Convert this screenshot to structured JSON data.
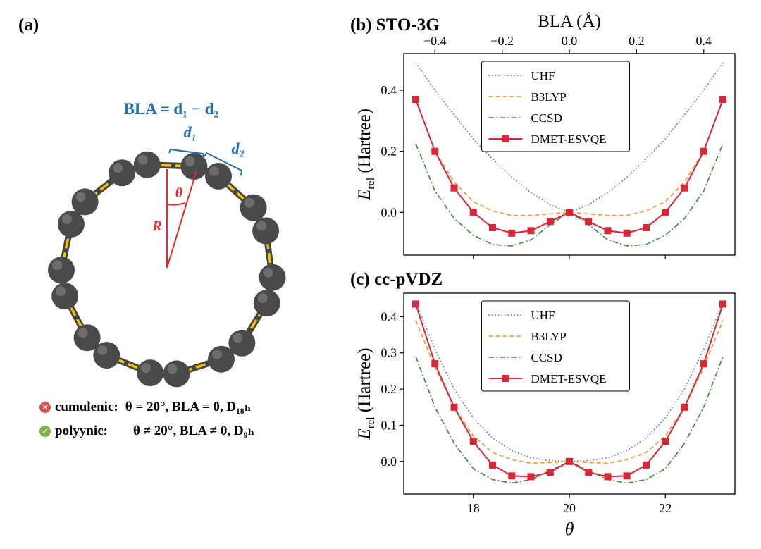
{
  "panel_a": {
    "label": "(a)",
    "formula": "BLA = d₁ − d₂",
    "d1_label": "d₁",
    "d2_label": "d₂",
    "theta_label": "θ",
    "r_label": "R",
    "note_cumulenic_name": "cumulenic:",
    "note_cumulenic_cond": "θ = 20°, BLA = 0, D₁₈ₕ",
    "note_polyynic_name": "polyynic:",
    "note_polyynic_cond": "θ ≠ 20°, BLA ≠ 0, D₉ₕ",
    "cumulenic_icon": "x-icon",
    "polyynic_icon": "check-icon",
    "colors": {
      "atom": "#4a4a4a",
      "bond": "#f5c200",
      "formula": "#1f6fb2",
      "angle": "#e8262b"
    }
  },
  "chart_data": [
    {
      "type": "line",
      "label": "(b) STO-3G",
      "top_axis_label": "BLA (Å)",
      "top_ticks": [
        -0.4,
        -0.2,
        0.0,
        0.2,
        0.4
      ],
      "top_tick_labels": [
        "−0.4",
        "−0.2",
        "0.0",
        "0.2",
        "0.4"
      ],
      "ylabel": "E_rel (Hartree)",
      "xlim": [
        16.55,
        23.45
      ],
      "ylim": [
        -0.14,
        0.52
      ],
      "yticks": [
        0.0,
        0.2,
        0.4
      ],
      "ytick_labels": [
        "0.0",
        "0.2",
        "0.4"
      ],
      "xticks": [
        18,
        20,
        22
      ],
      "xtick_labels": [],
      "legend": "top-center",
      "series": [
        {
          "name": "UHF",
          "style": "dotted",
          "color": "#4a6fa5",
          "x": [
            16.8,
            17.2,
            17.6,
            18.0,
            18.4,
            18.8,
            19.2,
            19.6,
            20.0,
            20.4,
            20.8,
            21.2,
            21.6,
            22.0,
            22.4,
            22.8,
            23.2
          ],
          "y": [
            0.49,
            0.4,
            0.32,
            0.24,
            0.175,
            0.115,
            0.065,
            0.025,
            0.0,
            0.025,
            0.065,
            0.115,
            0.175,
            0.24,
            0.32,
            0.4,
            0.49
          ]
        },
        {
          "name": "B3LYP",
          "style": "dashed",
          "color": "#f0932b",
          "x": [
            16.8,
            17.2,
            17.6,
            18.0,
            18.4,
            18.8,
            19.2,
            19.6,
            20.0,
            20.4,
            20.8,
            21.2,
            21.6,
            22.0,
            22.4,
            22.8,
            23.2
          ],
          "y": [
            0.37,
            0.2,
            0.1,
            0.035,
            0.005,
            -0.01,
            -0.01,
            -0.005,
            0.0,
            -0.005,
            -0.01,
            -0.01,
            0.005,
            0.035,
            0.1,
            0.2,
            0.37
          ]
        },
        {
          "name": "CCSD",
          "style": "dashdot",
          "color": "#3a8a3a",
          "x": [
            16.8,
            17.2,
            17.6,
            18.0,
            18.4,
            18.8,
            19.2,
            19.6,
            20.0,
            20.4,
            20.8,
            21.2,
            21.6,
            22.0,
            22.4,
            22.8,
            23.2
          ],
          "y": [
            0.225,
            0.07,
            -0.02,
            -0.075,
            -0.105,
            -0.11,
            -0.09,
            -0.04,
            0.0,
            -0.04,
            -0.09,
            -0.11,
            -0.105,
            -0.075,
            -0.02,
            0.07,
            0.225
          ]
        },
        {
          "name": "DMET-ESVQE",
          "style": "solid-square",
          "color": "#d62839",
          "x": [
            16.8,
            17.2,
            17.6,
            18.0,
            18.4,
            18.8,
            19.2,
            19.6,
            20.0,
            20.4,
            20.8,
            21.2,
            21.6,
            22.0,
            22.4,
            22.8,
            23.2
          ],
          "y": [
            0.37,
            0.2,
            0.08,
            0.0,
            -0.05,
            -0.068,
            -0.06,
            -0.03,
            0.0,
            -0.03,
            -0.06,
            -0.068,
            -0.05,
            0.0,
            0.08,
            0.2,
            0.37
          ]
        }
      ]
    },
    {
      "type": "line",
      "label": "(c) cc-pVDZ",
      "ylabel": "E_rel (Hartree)",
      "xlabel": "θ",
      "xlim": [
        16.55,
        23.45
      ],
      "ylim": [
        -0.09,
        0.465
      ],
      "yticks": [
        0.0,
        0.1,
        0.2,
        0.3,
        0.4
      ],
      "ytick_labels": [
        "0.0",
        "0.1",
        "0.2",
        "0.3",
        "0.4"
      ],
      "xticks": [
        18,
        20,
        22
      ],
      "xtick_labels": [
        "18",
        "20",
        "22"
      ],
      "legend": "top-center",
      "series": [
        {
          "name": "UHF",
          "style": "dotted",
          "color": "#4a6fa5",
          "x": [
            16.8,
            17.2,
            17.6,
            18.0,
            18.4,
            18.8,
            19.2,
            19.6,
            20.0,
            20.4,
            20.8,
            21.2,
            21.6,
            22.0,
            22.4,
            22.8,
            23.2
          ],
          "y": [
            0.44,
            0.31,
            0.2,
            0.12,
            0.065,
            0.03,
            0.01,
            0.002,
            0.0,
            0.002,
            0.01,
            0.03,
            0.065,
            0.12,
            0.2,
            0.31,
            0.44
          ]
        },
        {
          "name": "B3LYP",
          "style": "dashed",
          "color": "#f0932b",
          "x": [
            16.8,
            17.2,
            17.6,
            18.0,
            18.4,
            18.8,
            19.2,
            19.6,
            20.0,
            20.4,
            20.8,
            21.2,
            21.6,
            22.0,
            22.4,
            22.8,
            23.2
          ],
          "y": [
            0.39,
            0.26,
            0.15,
            0.07,
            0.025,
            0.005,
            -0.005,
            -0.003,
            0.0,
            -0.003,
            -0.005,
            0.005,
            0.025,
            0.07,
            0.15,
            0.26,
            0.39
          ]
        },
        {
          "name": "CCSD",
          "style": "dashdot",
          "color": "#3a8a3a",
          "x": [
            16.8,
            17.2,
            17.6,
            18.0,
            18.4,
            18.8,
            19.2,
            19.6,
            20.0,
            20.4,
            20.8,
            21.2,
            21.6,
            22.0,
            22.4,
            22.8,
            23.2
          ],
          "y": [
            0.29,
            0.15,
            0.05,
            -0.02,
            -0.05,
            -0.06,
            -0.05,
            -0.025,
            0.0,
            -0.025,
            -0.05,
            -0.06,
            -0.05,
            -0.02,
            0.05,
            0.15,
            0.29
          ]
        },
        {
          "name": "DMET-ESVQE",
          "style": "solid-square",
          "color": "#d62839",
          "x": [
            16.8,
            17.2,
            17.6,
            18.0,
            18.4,
            18.8,
            19.2,
            19.6,
            20.0,
            20.4,
            20.8,
            21.2,
            21.6,
            22.0,
            22.4,
            22.8,
            23.2
          ],
          "y": [
            0.435,
            0.27,
            0.15,
            0.055,
            -0.01,
            -0.04,
            -0.042,
            -0.03,
            0.0,
            -0.03,
            -0.042,
            -0.04,
            -0.01,
            0.055,
            0.15,
            0.27,
            0.435
          ]
        }
      ]
    }
  ]
}
